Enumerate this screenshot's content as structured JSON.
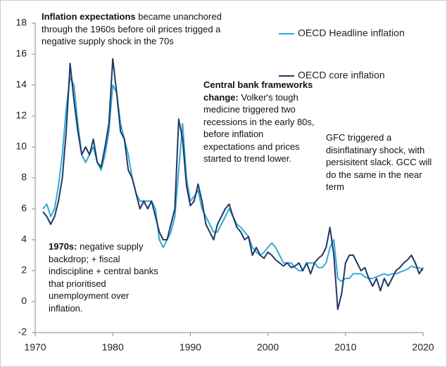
{
  "chart_data": {
    "type": "line",
    "x": [
      1971,
      1971.5,
      1972,
      1972.5,
      1973,
      1973.5,
      1974,
      1974.5,
      1975,
      1975.5,
      1976,
      1976.5,
      1977,
      1977.5,
      1978,
      1978.5,
      1979,
      1979.5,
      1980,
      1980.5,
      1981,
      1981.5,
      1982,
      1982.5,
      1983,
      1983.5,
      1984,
      1984.5,
      1985,
      1985.5,
      1986,
      1986.5,
      1987,
      1987.5,
      1988,
      1988.5,
      1989,
      1989.5,
      1990,
      1990.5,
      1991,
      1991.5,
      1992,
      1992.5,
      1993,
      1993.5,
      1994,
      1994.5,
      1995,
      1995.5,
      1996,
      1996.5,
      1997,
      1997.5,
      1998,
      1998.5,
      1999,
      1999.5,
      2000,
      2000.5,
      2001,
      2001.5,
      2002,
      2002.5,
      2003,
      2003.5,
      2004,
      2004.5,
      2005,
      2005.5,
      2006,
      2006.5,
      2007,
      2007.5,
      2008,
      2008.5,
      2009,
      2009.5,
      2010,
      2010.5,
      2011,
      2011.5,
      2012,
      2012.5,
      2013,
      2013.5,
      2014,
      2014.5,
      2015,
      2015.5,
      2016,
      2016.5,
      2017,
      2017.5,
      2018,
      2018.5,
      2019,
      2019.5,
      2020
    ],
    "series": [
      {
        "name": "OECD Headline inflation",
        "color": "#33a9d6",
        "values": [
          6.0,
          6.3,
          5.5,
          6.0,
          7.5,
          9.5,
          12.5,
          14.5,
          14.0,
          11.5,
          9.5,
          9.0,
          9.5,
          10.0,
          9.0,
          8.5,
          9.5,
          11.0,
          14.0,
          13.5,
          11.5,
          10.5,
          9.5,
          8.0,
          7.0,
          6.5,
          6.5,
          6.5,
          6.5,
          6.0,
          4.0,
          3.5,
          4.0,
          4.5,
          5.5,
          8.5,
          11.5,
          8.0,
          6.5,
          6.8,
          7.2,
          6.0,
          5.5,
          5.0,
          4.5,
          4.5,
          5.0,
          5.5,
          6.0,
          5.5,
          5.0,
          4.8,
          4.5,
          4.2,
          3.5,
          3.2,
          3.0,
          3.2,
          3.5,
          3.8,
          3.5,
          3.0,
          2.5,
          2.5,
          2.5,
          2.2,
          2.0,
          2.0,
          2.5,
          2.5,
          2.5,
          2.2,
          2.2,
          2.5,
          3.5,
          4.0,
          1.5,
          1.3,
          1.5,
          1.5,
          1.8,
          1.8,
          1.8,
          1.6,
          1.5,
          1.5,
          1.6,
          1.7,
          1.8,
          1.7,
          1.8,
          1.8,
          1.9,
          2.0,
          2.1,
          2.3,
          2.2,
          2.2,
          2.0
        ]
      },
      {
        "name": "OECD core inflation",
        "color": "#1f3864",
        "values": [
          5.8,
          5.5,
          5.0,
          5.5,
          6.5,
          8.0,
          11.0,
          15.4,
          13.0,
          11.0,
          9.5,
          10.0,
          9.5,
          10.5,
          9.0,
          8.7,
          10.0,
          11.5,
          15.7,
          13.5,
          11.0,
          10.5,
          8.5,
          8.0,
          7.0,
          6.0,
          6.5,
          6.0,
          6.5,
          5.5,
          4.5,
          4.0,
          4.0,
          5.0,
          6.0,
          11.8,
          10.5,
          7.5,
          6.2,
          6.5,
          7.6,
          6.5,
          5.0,
          4.5,
          4.0,
          5.0,
          5.5,
          6.0,
          6.3,
          5.5,
          4.8,
          4.5,
          4.0,
          4.2,
          3.0,
          3.5,
          3.0,
          2.8,
          3.2,
          3.0,
          2.7,
          2.5,
          2.3,
          2.5,
          2.2,
          2.3,
          2.5,
          2.0,
          2.5,
          1.8,
          2.5,
          2.8,
          3.0,
          3.5,
          4.8,
          3.0,
          -0.5,
          0.5,
          2.5,
          3.0,
          3.0,
          2.5,
          2.0,
          2.2,
          1.5,
          1.0,
          1.5,
          0.7,
          1.5,
          1.0,
          1.5,
          2.0,
          2.2,
          2.5,
          2.7,
          3.0,
          2.5,
          1.8,
          2.2
        ]
      }
    ],
    "xlim": [
      1970,
      2020
    ],
    "xticks": [
      1970,
      1980,
      1990,
      2000,
      2010,
      2020
    ],
    "ylim": [
      -2,
      18
    ],
    "yticks": [
      -2,
      0,
      2,
      4,
      6,
      8,
      10,
      12,
      14,
      16,
      18
    ],
    "legend": "top-right",
    "annotations": [
      {
        "bold": "Inflation expectations",
        "text": "became unanchored through the 1960s before oil  prices trigged a negative supply shock in the 70s"
      },
      {
        "bold": "Central bank frameworks change:",
        "text": "Volker's tough medicine triggered two recessions in the early 80s, before inflation expectations and prices started to trend lower."
      },
      {
        "text": "GFC triggered a disinflatinary shock, with persisitent slack.  GCC will do the same  in the near term"
      },
      {
        "bold": "1970s:",
        "text": "negative supply backdrop; + fiscal indiscipline + central banks that prioritised unemployment over inflation."
      }
    ]
  }
}
